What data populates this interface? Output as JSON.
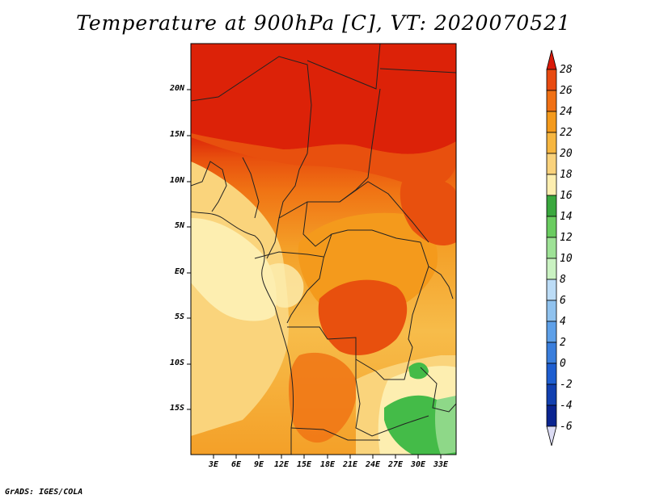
{
  "title": "Temperature at 900hPa [C], VT: 2020070521",
  "credit": "GrADS: IGES/COLA",
  "lat_labels": [
    "20N",
    "15N",
    "10N",
    "5N",
    "EQ",
    "5S",
    "10S",
    "15S"
  ],
  "lon_labels": [
    "3E",
    "6E",
    "9E",
    "12E",
    "15E",
    "18E",
    "21E",
    "24E",
    "27E",
    "30E",
    "33E"
  ],
  "colorbar": {
    "labels": [
      "28",
      "26",
      "24",
      "22",
      "20",
      "18",
      "16",
      "14",
      "12",
      "10",
      "8",
      "6",
      "4",
      "2",
      "0",
      "-2",
      "-4",
      "-6"
    ],
    "colors": [
      "#d92a0a",
      "#e84a10",
      "#f07014",
      "#f49a1c",
      "#f6b640",
      "#f9d27c",
      "#fdeeb0",
      "#3aa83e",
      "#6acc60",
      "#9ee296",
      "#caf2c2",
      "#bcdcf6",
      "#90c2ee",
      "#5ea0e8",
      "#3a7edc",
      "#1e5ed0",
      "#1240b0",
      "#0a2490",
      "#081462"
    ],
    "top_arrow_color": "#d91a0a",
    "bottom_arrow_color": "#dcdcf4"
  },
  "map": {
    "lon_range": [
      0,
      35
    ],
    "lat_range": [
      -20,
      25
    ],
    "field_colors": {
      "red": "#dc2208",
      "deep_orange": "#e8500e",
      "orange": "#f07414",
      "light_orange": "#f4a028",
      "pale_orange": "#f7bc4a",
      "yellow": "#fad47c",
      "cream": "#fdeeb0",
      "green": "#44bb48",
      "light_green": "#8ed888"
    }
  }
}
